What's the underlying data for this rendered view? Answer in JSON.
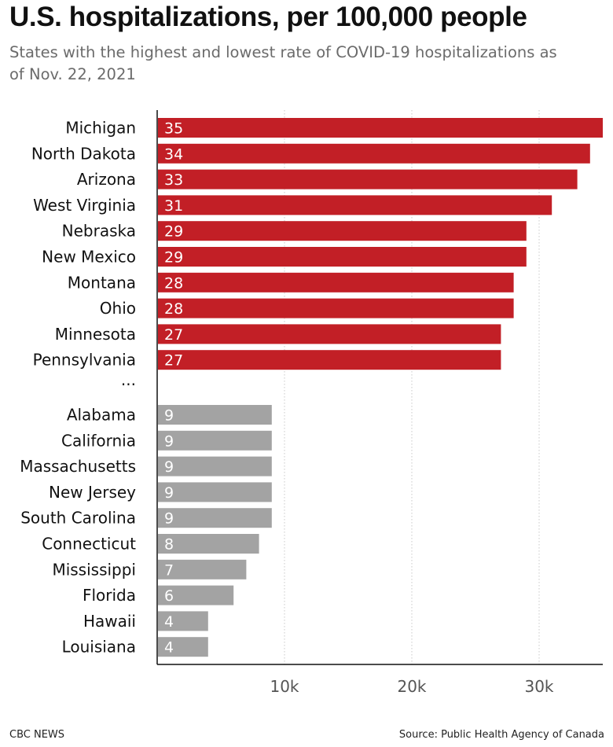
{
  "title": "U.S. hospitalizations, per 100,000 people",
  "subtitle": "States with the highest and lowest rate of COVID-19 hospitalizations as of Nov. 22, 2021",
  "footer": {
    "credit": "CBC NEWS",
    "source": "Source: Public Health Agency of Canada"
  },
  "colors": {
    "highest": "#c21f26",
    "lowest": "#a3a3a3",
    "grid": "#c8c8c8",
    "axis": "#111111",
    "tick_label": "#555555"
  },
  "chart_data": {
    "type": "bar",
    "orientation": "horizontal",
    "xlim": [
      0,
      35
    ],
    "xticks": [
      10,
      20,
      30
    ],
    "xtick_labels": [
      "10k",
      "20k",
      "30k"
    ],
    "grid": "vertical dotted",
    "separator_label": "...",
    "groups": [
      {
        "group": "highest",
        "categories": [
          "Michigan",
          "North Dakota",
          "Arizona",
          "West Virginia",
          "Nebraska",
          "New Mexico",
          "Montana",
          "Ohio",
          "Minnesota",
          "Pennsylvania"
        ],
        "values": [
          35,
          34,
          33,
          31,
          29,
          29,
          28,
          28,
          27,
          27
        ]
      },
      {
        "group": "lowest",
        "categories": [
          "Alabama",
          "California",
          "Massachusetts",
          "New Jersey",
          "South Carolina",
          "Connecticut",
          "Mississippi",
          "Florida",
          "Hawaii",
          "Louisiana"
        ],
        "values": [
          9,
          9,
          9,
          9,
          9,
          8,
          7,
          6,
          4,
          4
        ]
      }
    ]
  }
}
